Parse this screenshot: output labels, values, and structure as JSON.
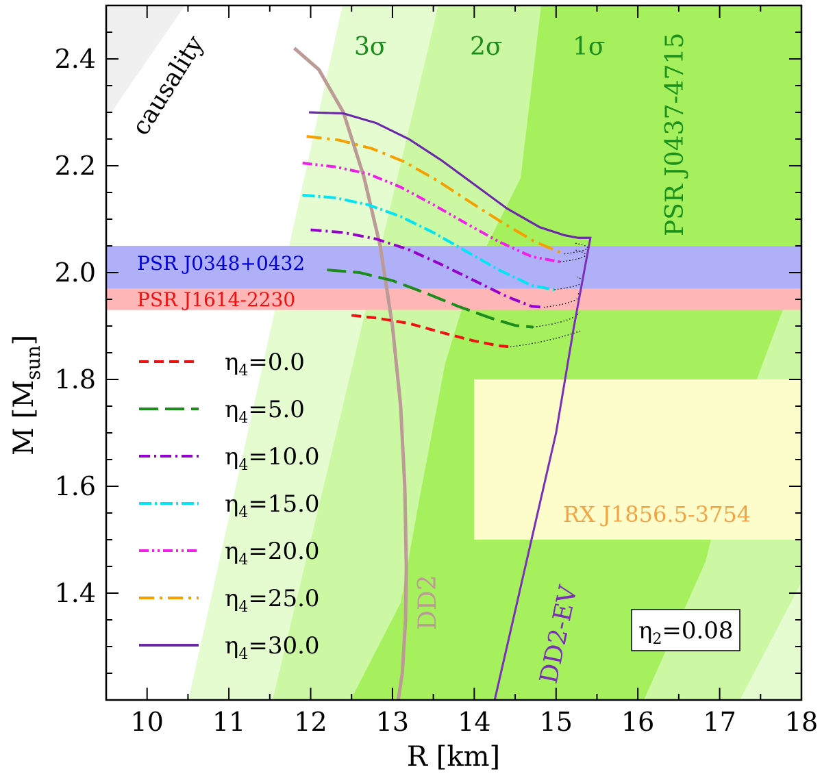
{
  "chart_data": {
    "type": "line",
    "title": "",
    "xlabel": "R [km]",
    "ylabel_main": "M [M",
    "ylabel_sub": "sun",
    "ylabel_close": "]",
    "xlim": [
      9.5,
      18
    ],
    "ylim": [
      1.2,
      2.5
    ],
    "xticks": [
      "10",
      "11",
      "12",
      "13",
      "14",
      "15",
      "16",
      "17",
      "18"
    ],
    "yticks": [
      "1.4",
      "1.6",
      "1.8",
      "2.0",
      "2.2",
      "2.4"
    ],
    "grid": false,
    "legend_position": "left",
    "regions": {
      "causality": {
        "label": "causality",
        "color": "#f0f0f0"
      },
      "sigma_labels": [
        "3σ",
        "2σ",
        "1σ"
      ],
      "sigma_colors": [
        "#e4fcd0",
        "#ccf8a4",
        "#a6f05e"
      ],
      "psr_j0437": {
        "label": "PSR J0437-4715",
        "color": "#1a8f1a"
      },
      "psr_j0348": {
        "label": "PSR J0348+0432",
        "mass_range": [
          1.97,
          2.05
        ],
        "color": "#b0b0f8",
        "text_color": "#0000dd"
      },
      "psr_j1614": {
        "label": "PSR J1614-2230",
        "mass_range": [
          1.93,
          1.97
        ],
        "color": "#ffb6b6",
        "text_color": "#ee1111"
      },
      "rx_j1856": {
        "label": "RX J1856.5-3754",
        "r_range": [
          14.0,
          18.0
        ],
        "m_range": [
          1.5,
          1.8
        ],
        "color": "#fdfdcc",
        "text_color": "#f5a342"
      }
    },
    "reference_curves": [
      {
        "name": "DD2",
        "color": "#bc9a96",
        "r": [
          11.8,
          12.1,
          12.4,
          12.65,
          12.85,
          13.0,
          13.1,
          13.15,
          13.17,
          13.16,
          13.12,
          13.07
        ],
        "m": [
          2.42,
          2.38,
          2.3,
          2.18,
          2.05,
          1.9,
          1.75,
          1.6,
          1.45,
          1.35,
          1.25,
          1.2
        ]
      },
      {
        "name": "DD2-EV",
        "color": "#7a2fb8",
        "r": [
          11.98,
          12.4,
          12.8,
          13.2,
          13.6,
          14.0,
          14.4,
          14.8,
          15.1,
          15.27,
          15.42,
          15.22,
          15.0,
          14.7,
          14.4,
          14.25
        ],
        "m": [
          2.3,
          2.298,
          2.28,
          2.25,
          2.21,
          2.165,
          2.12,
          2.085,
          2.07,
          2.065,
          2.065,
          1.9,
          1.7,
          1.5,
          1.3,
          1.2
        ]
      }
    ],
    "series": [
      {
        "name": "η₄=0.0",
        "color": "#ee1111",
        "dash": "14,8",
        "r": [
          12.5,
          12.8,
          13.2,
          13.6,
          14.0,
          14.3,
          14.44
        ],
        "m": [
          1.92,
          1.915,
          1.905,
          1.888,
          1.872,
          1.863,
          1.861
        ]
      },
      {
        "name": "η₄=5.0",
        "color": "#1c8c1c",
        "dash": "28,10",
        "r": [
          12.2,
          12.6,
          13.0,
          13.4,
          13.8,
          14.2,
          14.5,
          14.72
        ],
        "m": [
          2.005,
          2.0,
          1.985,
          1.962,
          1.937,
          1.915,
          1.901,
          1.898
        ]
      },
      {
        "name": "η₄=10.0",
        "color": "#9400cc",
        "dash": "16,6,3,6",
        "r": [
          12.0,
          12.4,
          12.8,
          13.2,
          13.6,
          14.0,
          14.4,
          14.7,
          14.85
        ],
        "m": [
          2.08,
          2.075,
          2.063,
          2.043,
          2.015,
          1.985,
          1.955,
          1.937,
          1.935
        ]
      },
      {
        "name": "η₄=15.0",
        "color": "#00e4f4",
        "dash": "18,5,3,5",
        "r": [
          11.9,
          12.3,
          12.7,
          13.1,
          13.5,
          13.9,
          14.3,
          14.7,
          14.98
        ],
        "m": [
          2.145,
          2.14,
          2.127,
          2.105,
          2.075,
          2.04,
          2.005,
          1.976,
          1.968
        ]
      },
      {
        "name": "η₄=20.0",
        "color": "#f020e8",
        "dash": "14,5,3,5,3,5",
        "r": [
          11.9,
          12.3,
          12.7,
          13.1,
          13.5,
          13.9,
          14.3,
          14.7,
          15.05
        ],
        "m": [
          2.205,
          2.198,
          2.185,
          2.16,
          2.127,
          2.092,
          2.058,
          2.03,
          2.02
        ]
      },
      {
        "name": "η₄=25.0",
        "color": "#f5a000",
        "dash": "22,8,4,8",
        "r": [
          11.95,
          12.35,
          12.75,
          13.15,
          13.55,
          13.95,
          14.35,
          14.75,
          15.1
        ],
        "m": [
          2.255,
          2.248,
          2.232,
          2.207,
          2.172,
          2.132,
          2.093,
          2.057,
          2.035
        ]
      },
      {
        "name": "η₄=30.0",
        "color": "#6a2aa8",
        "dash": "",
        "r": [
          11.98,
          12.4,
          12.8,
          13.2,
          13.6,
          14.0,
          14.4,
          14.8,
          15.1,
          15.27,
          15.42
        ],
        "m": [
          2.3,
          2.298,
          2.28,
          2.25,
          2.21,
          2.165,
          2.12,
          2.085,
          2.07,
          2.065,
          2.065
        ]
      }
    ],
    "legend_entries": [
      {
        "sym": "η",
        "sub": "4",
        "rest": "=0.0"
      },
      {
        "sym": "η",
        "sub": "4",
        "rest": "=5.0"
      },
      {
        "sym": "η",
        "sub": "4",
        "rest": "=10.0"
      },
      {
        "sym": "η",
        "sub": "4",
        "rest": "=15.0"
      },
      {
        "sym": "η",
        "sub": "4",
        "rest": "=20.0"
      },
      {
        "sym": "η",
        "sub": "4",
        "rest": "=25.0"
      },
      {
        "sym": "η",
        "sub": "4",
        "rest": "=30.0"
      }
    ],
    "param_box": {
      "sym": "η",
      "sub": "2",
      "rest": "=0.08"
    }
  }
}
